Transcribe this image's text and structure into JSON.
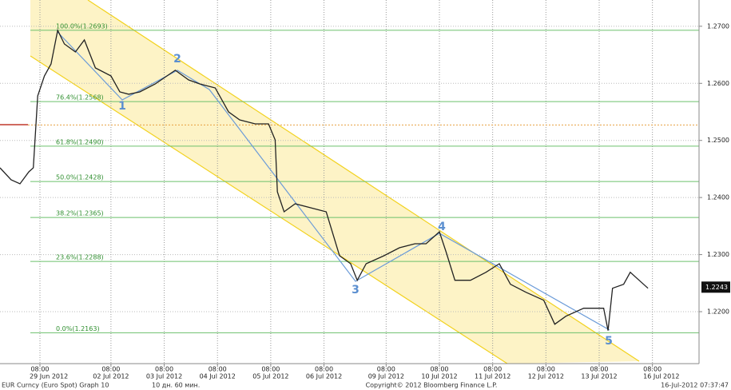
{
  "chart_data": {
    "type": "line",
    "x": [
      0,
      5,
      9,
      13,
      15,
      17,
      20,
      23,
      26,
      29,
      34,
      38,
      43,
      50,
      54,
      58,
      63,
      70,
      79,
      85,
      90,
      97,
      103,
      108,
      115,
      121,
      124,
      125,
      128,
      133,
      140,
      147,
      153,
      158,
      161,
      165,
      173,
      180,
      187,
      192,
      198,
      201,
      205,
      212,
      219,
      225,
      230,
      237,
      245,
      250,
      255,
      263,
      272,
      274,
      276,
      281,
      284,
      288,
      292
    ],
    "values": [
      1.2452,
      1.2431,
      1.2424,
      1.2445,
      1.2452,
      1.2578,
      1.2613,
      1.2634,
      1.2693,
      1.2669,
      1.2655,
      1.2676,
      1.2627,
      1.2613,
      1.2585,
      1.2581,
      1.2585,
      1.2599,
      1.2623,
      1.2606,
      1.2599,
      1.2592,
      1.255,
      1.2536,
      1.2529,
      1.2529,
      1.2501,
      1.241,
      1.2375,
      1.2389,
      1.2382,
      1.2375,
      1.2298,
      1.2284,
      1.2255,
      1.2284,
      1.2298,
      1.2312,
      1.2319,
      1.2319,
      1.234,
      1.2305,
      1.2255,
      1.2255,
      1.2269,
      1.2284,
      1.2248,
      1.2234,
      1.222,
      1.2178,
      1.2192,
      1.2206,
      1.2206,
      1.2167,
      1.2241,
      1.2248,
      1.2269,
      1.2255,
      1.2241
    ],
    "color": "#222222",
    "xlim": [
      0,
      315
    ],
    "ylim": [
      1.2109,
      1.2746
    ],
    "xticks": [
      {
        "value": 18,
        "label": "08:00"
      },
      {
        "value": 50,
        "label": "08:00"
      },
      {
        "value": 74,
        "label": "08:00"
      },
      {
        "value": 98,
        "label": "08:00"
      },
      {
        "value": 122,
        "label": "08:00"
      },
      {
        "value": 146,
        "label": "08:00"
      },
      {
        "value": 174,
        "label": "08:00"
      },
      {
        "value": 198,
        "label": "08:00"
      },
      {
        "value": 222,
        "label": "08:00"
      },
      {
        "value": 246,
        "label": "08:00"
      },
      {
        "value": 270,
        "label": "08:00"
      },
      {
        "value": 294,
        "label": "08:00"
      }
    ],
    "date_labels": [
      {
        "value": 22,
        "label": "29 Jun 2012"
      },
      {
        "value": 50,
        "label": "02 Jul 2012"
      },
      {
        "value": 74,
        "label": "03 Jul 2012"
      },
      {
        "value": 98,
        "label": "04 Jul 2012"
      },
      {
        "value": 122,
        "label": "05 Jul 2012"
      },
      {
        "value": 146,
        "label": "06 Jul 2012"
      },
      {
        "value": 174,
        "label": "09 Jul 2012"
      },
      {
        "value": 198,
        "label": "10 Jul 2012"
      },
      {
        "value": 222,
        "label": "11 Jul 2012"
      },
      {
        "value": 246,
        "label": "12 Jul 2012"
      },
      {
        "value": 270,
        "label": "13 Jul 2012"
      },
      {
        "value": 298,
        "label": "16 Jul 2012"
      }
    ],
    "yticks": [
      {
        "value": 1.27,
        "label": "1.2700"
      },
      {
        "value": 1.26,
        "label": "1.2600"
      },
      {
        "value": 1.25,
        "label": "1.2500"
      },
      {
        "value": 1.24,
        "label": "1.2400"
      },
      {
        "value": 1.23,
        "label": "1.2300"
      },
      {
        "value": 1.22,
        "label": "1.2200"
      }
    ],
    "fib_levels": [
      {
        "value": 1.2693,
        "label": "100.0%(1.2693)"
      },
      {
        "value": 1.2568,
        "label": "76.4%(1.2568)"
      },
      {
        "value": 1.249,
        "label": "61.8%(1.2490)"
      },
      {
        "value": 1.2428,
        "label": "50.0%(1.2428)"
      },
      {
        "value": 1.2365,
        "label": "38.2%(1.2365)"
      },
      {
        "value": 1.2288,
        "label": "23.6%(1.2288)"
      },
      {
        "value": 1.2163,
        "label": "0.0%(1.2163)"
      }
    ],
    "ref_level": 1.2527,
    "last_price": 1.2243,
    "wave_labels": [
      "1",
      "2",
      "3",
      "4",
      "5"
    ],
    "footer": {
      "security": "EUR Curncy (Euro Spot) Graph 10",
      "period": "10 дн. 60 мин.",
      "copyright": "Copyright© 2012 Bloomberg Finance L.P.",
      "timestamp": "16-Jul-2012 07:37:47"
    }
  }
}
